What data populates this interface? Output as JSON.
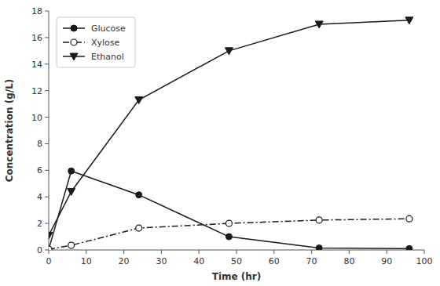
{
  "chart_data": {
    "type": "line",
    "xlabel": "Time (hr)",
    "ylabel": "Concentration (g/L)",
    "x": [
      0,
      6,
      24,
      48,
      72,
      96
    ],
    "xlim": [
      0,
      100
    ],
    "ylim": [
      0,
      18
    ],
    "xticks": [
      0,
      10,
      20,
      30,
      40,
      50,
      60,
      70,
      80,
      90,
      100
    ],
    "yticks": [
      0,
      2,
      4,
      6,
      8,
      10,
      12,
      14,
      16,
      18
    ],
    "grid": false,
    "legend": "upper left",
    "series": [
      {
        "name": "Glucose",
        "color": "#1a1a1a",
        "marker": "circle",
        "line_style": "solid",
        "values": [
          0.05,
          5.95,
          4.15,
          1.0,
          0.15,
          0.1
        ]
      },
      {
        "name": "Xylose",
        "color": "#1a1a1a",
        "marker": "open-circle",
        "line_style": "dash-dot",
        "values": [
          0.05,
          0.35,
          1.65,
          2.0,
          2.25,
          2.35
        ]
      },
      {
        "name": "Ethanol",
        "color": "#1a1a1a",
        "marker": "triangle-down",
        "line_style": "solid",
        "values": [
          1.1,
          4.4,
          11.3,
          15.0,
          17.0,
          17.3
        ]
      }
    ]
  }
}
